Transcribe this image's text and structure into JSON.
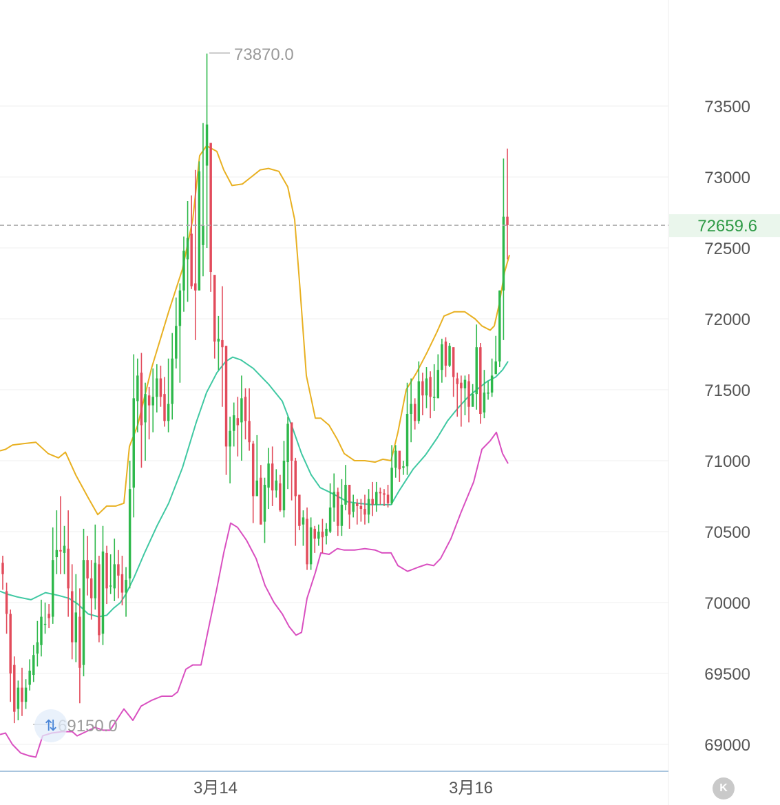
{
  "chart_data": {
    "type": "candlestick",
    "x_tick_labels": [
      "3月14",
      "3月16"
    ],
    "y_ticks": [
      69000,
      69500,
      70000,
      70500,
      71000,
      71500,
      72000,
      72500,
      73000,
      73500
    ],
    "ylim": [
      68850,
      73870
    ],
    "grid": true,
    "current_price": 72659.6,
    "current_price_label": "72659.6",
    "annotations": {
      "high_label": "73870.0",
      "low_label": "69150.0"
    },
    "colors": {
      "up": "#2eb84b",
      "down": "#e24b5b",
      "upper_band": "#e8b021",
      "middle_band": "#3fc8a2",
      "lower_band": "#d94fc0",
      "price_line": "#aaaaaa",
      "price_label": "#2e9a46"
    },
    "candles": [
      [
        70280,
        70200,
        70330,
        70090
      ],
      [
        70080,
        69920,
        70140,
        69780
      ],
      [
        69920,
        69500,
        69950,
        69300
      ],
      [
        69560,
        69230,
        69620,
        69150
      ],
      [
        69250,
        69400,
        69450,
        69170
      ],
      [
        69400,
        69300,
        69540,
        69200
      ],
      [
        69300,
        69400,
        69460,
        69250
      ],
      [
        69420,
        69520,
        69600,
        69380
      ],
      [
        69490,
        69630,
        69700,
        69440
      ],
      [
        69640,
        69720,
        69870,
        69550
      ],
      [
        69700,
        69900,
        70020,
        69620
      ],
      [
        69850,
        69850,
        70000,
        69780
      ],
      [
        69920,
        69890,
        69990,
        69820
      ],
      [
        69900,
        70300,
        70530,
        69850
      ],
      [
        70320,
        70370,
        70650,
        70200
      ],
      [
        70370,
        70360,
        70750,
        70200
      ],
      [
        70350,
        70400,
        70540,
        70200
      ],
      [
        70380,
        70100,
        70650,
        69900
      ],
      [
        70080,
        69720,
        70270,
        69600
      ],
      [
        69720,
        69930,
        70200,
        69580
      ],
      [
        69900,
        69540,
        70100,
        69290
      ],
      [
        69560,
        70300,
        70520,
        69480
      ],
      [
        70300,
        70170,
        70470,
        70050
      ],
      [
        70170,
        70030,
        70300,
        69880
      ],
      [
        70030,
        70280,
        70550,
        69950
      ],
      [
        70270,
        69770,
        70330,
        69720
      ],
      [
        69780,
        70360,
        70540,
        69700
      ],
      [
        70350,
        70100,
        70400,
        69990
      ],
      [
        70120,
        70120,
        70340,
        70060
      ],
      [
        70100,
        70270,
        70450,
        70010
      ],
      [
        70270,
        70190,
        70370,
        70030
      ],
      [
        70200,
        70070,
        70330,
        69980
      ],
      [
        70070,
        70160,
        70250,
        69900
      ],
      [
        70170,
        70800,
        71000,
        70100
      ],
      [
        70810,
        71440,
        71750,
        70600
      ],
      [
        71420,
        71600,
        71720,
        71200
      ],
      [
        71620,
        71250,
        71760,
        70950
      ],
      [
        71270,
        71470,
        71550,
        71000
      ],
      [
        71460,
        71390,
        71520,
        71150
      ],
      [
        71390,
        71450,
        71650,
        71200
      ],
      [
        71450,
        71580,
        71680,
        71340
      ],
      [
        71580,
        71450,
        71670,
        71380
      ],
      [
        71470,
        71280,
        71590,
        71240
      ],
      [
        71280,
        71400,
        71720,
        71200
      ],
      [
        71400,
        71720,
        71900,
        71290
      ],
      [
        71720,
        71950,
        72150,
        71650
      ],
      [
        71950,
        72200,
        72250,
        71550
      ],
      [
        72200,
        72480,
        72580,
        72050
      ],
      [
        72420,
        72570,
        72830,
        72120
      ],
      [
        72600,
        72230,
        72870,
        72210
      ],
      [
        72250,
        72200,
        73050,
        71850
      ],
      [
        72200,
        73040,
        73110,
        72300
      ],
      [
        72520,
        72660,
        73380,
        72300
      ],
      [
        73080,
        73370,
        73870,
        72500
      ],
      [
        73240,
        72330,
        72700,
        72190
      ],
      [
        72310,
        71840,
        71880,
        71720
      ],
      [
        71840,
        71860,
        72020,
        71640
      ],
      [
        71850,
        71800,
        72230,
        71380
      ],
      [
        71810,
        71100,
        71800,
        70900
      ],
      [
        71100,
        71210,
        71310,
        70840
      ],
      [
        71210,
        71320,
        71410,
        71100
      ],
      [
        71300,
        71250,
        71450,
        71030
      ],
      [
        71270,
        71440,
        71600,
        71000
      ],
      [
        71450,
        71280,
        71510,
        71150
      ],
      [
        71280,
        71130,
        71510,
        71070
      ],
      [
        71120,
        70750,
        71140,
        70560
      ],
      [
        70750,
        70860,
        71180,
        70750
      ],
      [
        70880,
        70550,
        70970,
        70550
      ],
      [
        70570,
        70830,
        70880,
        70420
      ],
      [
        70810,
        70980,
        71090,
        70660
      ],
      [
        70980,
        70790,
        71100,
        70680
      ],
      [
        70790,
        70860,
        70940,
        70740
      ],
      [
        70840,
        70650,
        70900,
        70640
      ],
      [
        70650,
        71000,
        71140,
        70600
      ],
      [
        70990,
        71260,
        71310,
        70800
      ],
      [
        71270,
        71000,
        71130,
        70720
      ],
      [
        71000,
        70750,
        71020,
        70400
      ],
      [
        70760,
        70540,
        70630,
        70510
      ],
      [
        70550,
        70600,
        70650,
        70400
      ],
      [
        70590,
        70270,
        70670,
        70230
      ],
      [
        70270,
        70530,
        70600,
        70230
      ],
      [
        70520,
        70450,
        70540,
        70350
      ],
      [
        70450,
        70500,
        70550,
        70400
      ],
      [
        70500,
        70460,
        70590,
        70350
      ],
      [
        70470,
        70520,
        70560,
        70410
      ],
      [
        70500,
        70670,
        70840,
        70490
      ],
      [
        70670,
        70780,
        70910,
        70570
      ],
      [
        70780,
        70540,
        70810,
        70470
      ],
      [
        70540,
        70690,
        70870,
        70470
      ],
      [
        70690,
        70830,
        70970,
        70650
      ],
      [
        70830,
        70620,
        70750,
        70520
      ],
      [
        70640,
        70700,
        70760,
        70600
      ],
      [
        70700,
        70680,
        70730,
        70550
      ],
      [
        70680,
        70660,
        70730,
        70570
      ],
      [
        70660,
        70620,
        70760,
        70550
      ],
      [
        70620,
        70730,
        70800,
        70560
      ],
      [
        70730,
        70690,
        70850,
        70610
      ],
      [
        70690,
        70780,
        70850,
        70640
      ],
      [
        70780,
        70770,
        70810,
        70690
      ],
      [
        70770,
        70760,
        70800,
        70680
      ],
      [
        70760,
        70700,
        70830,
        70670
      ],
      [
        70700,
        70950,
        71110,
        70690
      ],
      [
        70950,
        71070,
        71110,
        70880
      ],
      [
        71070,
        70940,
        71000,
        70850
      ],
      [
        70950,
        70960,
        71000,
        70900
      ],
      [
        70960,
        71330,
        71550,
        70900
      ],
      [
        71330,
        71400,
        71580,
        71130
      ],
      [
        71400,
        71280,
        71440,
        71220
      ],
      [
        71280,
        71560,
        71700,
        71260
      ],
      [
        71560,
        71460,
        71620,
        71320
      ],
      [
        71460,
        71580,
        71660,
        71370
      ],
      [
        71590,
        71450,
        71630,
        71300
      ],
      [
        71450,
        71450,
        71680,
        71350
      ],
      [
        71440,
        71640,
        71750,
        71580
      ],
      [
        71640,
        71820,
        71860,
        71550
      ],
      [
        71840,
        71670,
        71870,
        71590
      ],
      [
        71670,
        71810,
        71830,
        71660
      ],
      [
        71800,
        71590,
        71800,
        71450
      ],
      [
        71580,
        71540,
        71620,
        71310
      ],
      [
        71550,
        71510,
        71600,
        71240
      ],
      [
        71510,
        71570,
        71600,
        71320
      ],
      [
        71560,
        71380,
        71610,
        71270
      ],
      [
        71380,
        71470,
        71540,
        71380
      ],
      [
        71470,
        71800,
        71960,
        71360
      ],
      [
        71800,
        71330,
        71830,
        71260
      ],
      [
        71340,
        71480,
        71640,
        71300
      ],
      [
        71480,
        71480,
        71560,
        71430
      ],
      [
        71480,
        71600,
        71720,
        71450
      ],
      [
        71610,
        71700,
        71880,
        71650
      ],
      [
        71700,
        72200,
        72200,
        71660
      ],
      [
        72200,
        72720,
        73130,
        71850
      ],
      [
        72720,
        72660,
        73200,
        72420
      ]
    ],
    "bands": {
      "upper": [
        [
          0,
          71070
        ],
        [
          8,
          71080
        ],
        [
          18,
          71110
        ],
        [
          34,
          71120
        ],
        [
          52,
          71130
        ],
        [
          70,
          71050
        ],
        [
          85,
          71020
        ],
        [
          95,
          71060
        ],
        [
          110,
          70900
        ],
        [
          128,
          70740
        ],
        [
          142,
          70620
        ],
        [
          155,
          70680
        ],
        [
          168,
          70680
        ],
        [
          180,
          70700
        ],
        [
          188,
          71100
        ],
        [
          200,
          71250
        ],
        [
          220,
          71650
        ],
        [
          245,
          72050
        ],
        [
          265,
          72350
        ],
        [
          280,
          72700
        ],
        [
          290,
          73150
        ],
        [
          300,
          73220
        ],
        [
          315,
          73180
        ],
        [
          325,
          73050
        ],
        [
          337,
          72940
        ],
        [
          352,
          72950
        ],
        [
          365,
          73000
        ],
        [
          378,
          73050
        ],
        [
          390,
          73060
        ],
        [
          405,
          73040
        ],
        [
          418,
          72930
        ],
        [
          428,
          72700
        ],
        [
          436,
          72200
        ],
        [
          445,
          71600
        ],
        [
          458,
          71300
        ],
        [
          466,
          71300
        ],
        [
          478,
          71250
        ],
        [
          490,
          71150
        ],
        [
          500,
          71050
        ],
        [
          515,
          71000
        ],
        [
          530,
          71000
        ],
        [
          545,
          70990
        ],
        [
          556,
          71010
        ],
        [
          568,
          71000
        ],
        [
          578,
          71200
        ],
        [
          590,
          71500
        ],
        [
          605,
          71620
        ],
        [
          620,
          71760
        ],
        [
          634,
          71900
        ],
        [
          645,
          72020
        ],
        [
          660,
          72050
        ],
        [
          675,
          72050
        ],
        [
          690,
          72000
        ],
        [
          700,
          71950
        ],
        [
          712,
          71920
        ],
        [
          718,
          71950
        ],
        [
          725,
          72100
        ],
        [
          733,
          72330
        ],
        [
          740,
          72450
        ]
      ],
      "middle": [
        [
          0,
          70080
        ],
        [
          10,
          70060
        ],
        [
          25,
          70040
        ],
        [
          45,
          70020
        ],
        [
          66,
          70070
        ],
        [
          85,
          70050
        ],
        [
          100,
          70030
        ],
        [
          113,
          69990
        ],
        [
          128,
          69920
        ],
        [
          143,
          69900
        ],
        [
          155,
          69910
        ],
        [
          165,
          69960
        ],
        [
          175,
          70000
        ],
        [
          183,
          70060
        ],
        [
          195,
          70180
        ],
        [
          210,
          70350
        ],
        [
          228,
          70540
        ],
        [
          245,
          70700
        ],
        [
          265,
          70950
        ],
        [
          285,
          71270
        ],
        [
          300,
          71480
        ],
        [
          315,
          71620
        ],
        [
          328,
          71700
        ],
        [
          338,
          71730
        ],
        [
          350,
          71710
        ],
        [
          368,
          71650
        ],
        [
          390,
          71540
        ],
        [
          410,
          71420
        ],
        [
          425,
          71230
        ],
        [
          438,
          71050
        ],
        [
          452,
          70900
        ],
        [
          465,
          70810
        ],
        [
          478,
          70780
        ],
        [
          490,
          70750
        ],
        [
          505,
          70710
        ],
        [
          520,
          70700
        ],
        [
          540,
          70690
        ],
        [
          555,
          70690
        ],
        [
          568,
          70690
        ],
        [
          580,
          70790
        ],
        [
          600,
          70940
        ],
        [
          618,
          71040
        ],
        [
          635,
          71160
        ],
        [
          650,
          71280
        ],
        [
          665,
          71370
        ],
        [
          680,
          71450
        ],
        [
          695,
          71510
        ],
        [
          708,
          71560
        ],
        [
          720,
          71590
        ],
        [
          730,
          71640
        ],
        [
          738,
          71700
        ]
      ],
      "lower": [
        [
          0,
          69070
        ],
        [
          8,
          69080
        ],
        [
          18,
          69000
        ],
        [
          30,
          68940
        ],
        [
          42,
          68920
        ],
        [
          52,
          68910
        ],
        [
          62,
          69060
        ],
        [
          75,
          69080
        ],
        [
          90,
          69090
        ],
        [
          105,
          69090
        ],
        [
          112,
          69060
        ],
        [
          125,
          69090
        ],
        [
          138,
          69120
        ],
        [
          150,
          69100
        ],
        [
          160,
          69100
        ],
        [
          168,
          69160
        ],
        [
          180,
          69250
        ],
        [
          193,
          69170
        ],
        [
          205,
          69270
        ],
        [
          220,
          69310
        ],
        [
          235,
          69340
        ],
        [
          250,
          69340
        ],
        [
          258,
          69370
        ],
        [
          270,
          69530
        ],
        [
          280,
          69560
        ],
        [
          292,
          69560
        ],
        [
          300,
          69750
        ],
        [
          315,
          70100
        ],
        [
          325,
          70350
        ],
        [
          335,
          70560
        ],
        [
          345,
          70530
        ],
        [
          358,
          70440
        ],
        [
          372,
          70310
        ],
        [
          385,
          70120
        ],
        [
          398,
          70000
        ],
        [
          410,
          69920
        ],
        [
          420,
          69830
        ],
        [
          430,
          69770
        ],
        [
          438,
          69790
        ],
        [
          446,
          70030
        ],
        [
          458,
          70210
        ],
        [
          466,
          70350
        ],
        [
          478,
          70340
        ],
        [
          490,
          70380
        ],
        [
          500,
          70370
        ],
        [
          515,
          70370
        ],
        [
          530,
          70380
        ],
        [
          545,
          70370
        ],
        [
          555,
          70350
        ],
        [
          568,
          70350
        ],
        [
          578,
          70260
        ],
        [
          592,
          70220
        ],
        [
          608,
          70250
        ],
        [
          620,
          70270
        ],
        [
          630,
          70260
        ],
        [
          640,
          70310
        ],
        [
          655,
          70450
        ],
        [
          670,
          70640
        ],
        [
          688,
          70850
        ],
        [
          700,
          71080
        ],
        [
          712,
          71140
        ],
        [
          721,
          71200
        ],
        [
          730,
          71050
        ],
        [
          738,
          70980
        ]
      ]
    }
  },
  "ui": {
    "k_button_label": "K",
    "swap_icon": "swap-arrows-icon"
  }
}
